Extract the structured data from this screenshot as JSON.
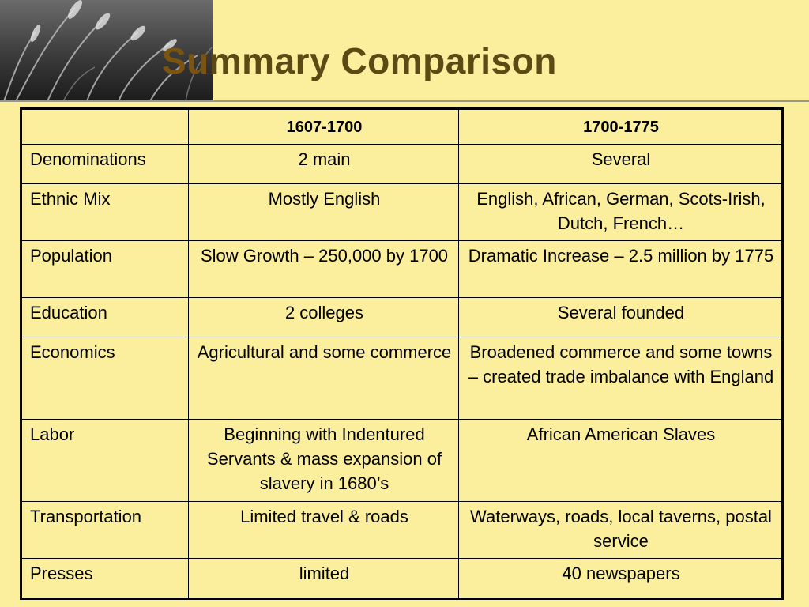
{
  "slide": {
    "title_lead": "Su",
    "title_rest": "mmary Comparison"
  },
  "table": {
    "headers": [
      "",
      "1607-1700",
      "1700-1775"
    ],
    "rows": [
      {
        "category": "Denominations",
        "p1": "2 main",
        "p2": "Several"
      },
      {
        "category": "Ethnic Mix",
        "p1": "Mostly English",
        "p2": "English, African, German, Scots-Irish, Dutch, French…"
      },
      {
        "category": "Population",
        "p1": "Slow Growth – 250,000 by 1700",
        "p2": "Dramatic Increase – 2.5 million by 1775"
      },
      {
        "category": "Education",
        "p1": "2 colleges",
        "p2": "Several founded"
      },
      {
        "category": "Economics",
        "p1": "Agricultural and some commerce",
        "p2": "Broadened commerce and some towns – created trade imbalance with England"
      },
      {
        "category": "Labor",
        "p1": "Beginning with Indentured Servants & mass expansion of slavery in 1680’s",
        "p2": "African American Slaves"
      },
      {
        "category": "Transportation",
        "p1": "Limited travel & roads",
        "p2": "Waterways, roads, local taverns, postal service"
      },
      {
        "category": "Presses",
        "p1": "limited",
        "p2": "40 newspapers"
      }
    ]
  }
}
